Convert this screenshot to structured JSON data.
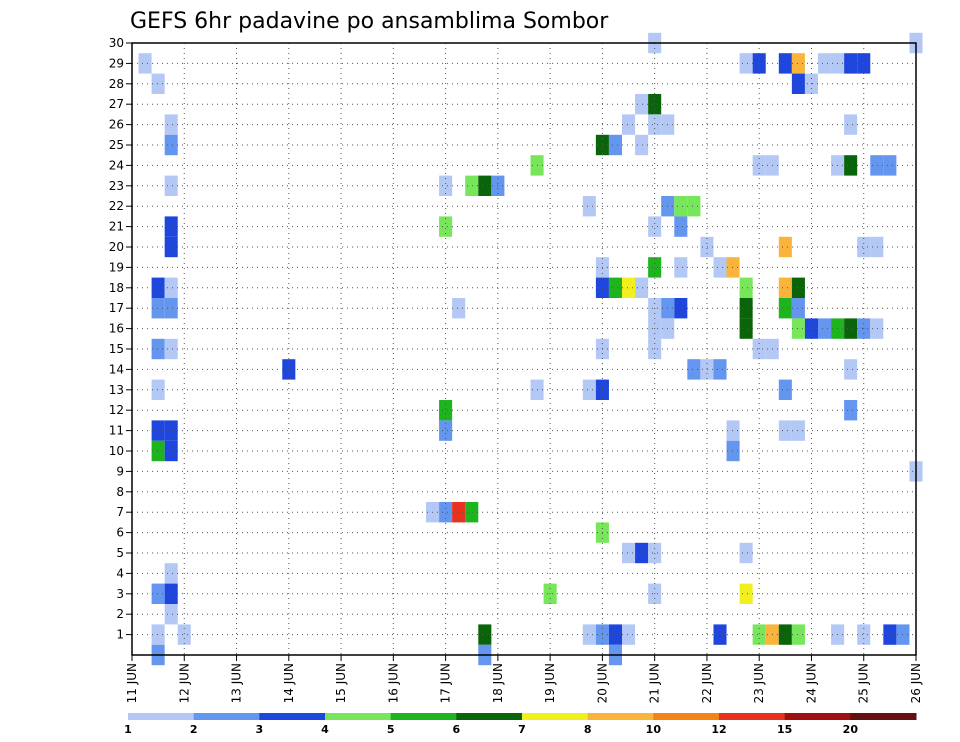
{
  "chart_data": {
    "type": "heatmap",
    "title": "GEFS 6hr padavine po ansamblima Sombor",
    "xlabel": "",
    "ylabel": "",
    "x_range_days": [
      11,
      26
    ],
    "x_ticks": [
      "11 JUN",
      "12 JUN",
      "13 JUN",
      "14 JUN",
      "15 JUN",
      "16 JUN",
      "17 JUN",
      "18 JUN",
      "19 JUN",
      "20 JUN",
      "21 JUN",
      "22 JUN",
      "23 JUN",
      "24 JUN",
      "25 JUN",
      "26 JUN"
    ],
    "y_ticks": [
      "1",
      "2",
      "3",
      "4",
      "5",
      "6",
      "7",
      "8",
      "9",
      "10",
      "11",
      "12",
      "13",
      "14",
      "15",
      "16",
      "17",
      "18",
      "19",
      "20",
      "21",
      "22",
      "23",
      "24",
      "25",
      "26",
      "27",
      "28",
      "29",
      "30"
    ],
    "ylim": [
      0,
      30
    ],
    "grid": true,
    "colorbar": {
      "labels": [
        "1",
        "2",
        "3",
        "4",
        "5",
        "6",
        "7",
        "8",
        "10",
        "12",
        "15",
        "20"
      ],
      "colors": [
        "#b4c8f5",
        "#6496f0",
        "#1e46dc",
        "#78e65a",
        "#1eb41e",
        "#0a640a",
        "#f0f01e",
        "#fab43c",
        "#f58214",
        "#e6321e",
        "#a00f0f",
        "#641010"
      ]
    },
    "cells_format": "[member, day_of_june, color_class_index]",
    "cells": [
      [
        30,
        21.0,
        0
      ],
      [
        30,
        26.0,
        0
      ],
      [
        29,
        11.25,
        0
      ],
      [
        29,
        22.75,
        0
      ],
      [
        29,
        23.0,
        2
      ],
      [
        29,
        23.5,
        2
      ],
      [
        29,
        23.75,
        7
      ],
      [
        29,
        24.25,
        0
      ],
      [
        29,
        24.5,
        0
      ],
      [
        29,
        24.75,
        2
      ],
      [
        29,
        25.0,
        2
      ],
      [
        28,
        11.5,
        0
      ],
      [
        28,
        23.75,
        2
      ],
      [
        28,
        24.0,
        0
      ],
      [
        27,
        20.75,
        0
      ],
      [
        27,
        21.0,
        5
      ],
      [
        26,
        11.75,
        0
      ],
      [
        26,
        20.5,
        0
      ],
      [
        26,
        21.0,
        0
      ],
      [
        26,
        21.25,
        0
      ],
      [
        26,
        24.75,
        0
      ],
      [
        25,
        11.75,
        1
      ],
      [
        25,
        20.0,
        5
      ],
      [
        25,
        20.25,
        1
      ],
      [
        25,
        20.75,
        0
      ],
      [
        24,
        18.75,
        3
      ],
      [
        24,
        23.0,
        0
      ],
      [
        24,
        23.25,
        0
      ],
      [
        24,
        24.5,
        0
      ],
      [
        24,
        24.75,
        5
      ],
      [
        24,
        25.25,
        1
      ],
      [
        24,
        25.5,
        1
      ],
      [
        23,
        11.75,
        0
      ],
      [
        23,
        17.0,
        0
      ],
      [
        23,
        17.5,
        3
      ],
      [
        23,
        17.75,
        5
      ],
      [
        23,
        18.0,
        1
      ],
      [
        22,
        19.75,
        0
      ],
      [
        22,
        21.25,
        1
      ],
      [
        22,
        21.5,
        3
      ],
      [
        22,
        21.75,
        3
      ],
      [
        21,
        11.75,
        2
      ],
      [
        21,
        17.0,
        3
      ],
      [
        21,
        21.0,
        0
      ],
      [
        21,
        21.5,
        1
      ],
      [
        20,
        11.75,
        2
      ],
      [
        20,
        22.0,
        0
      ],
      [
        20,
        23.5,
        7
      ],
      [
        20,
        25.0,
        0
      ],
      [
        20,
        25.25,
        0
      ],
      [
        19,
        20.0,
        0
      ],
      [
        19,
        21.0,
        4
      ],
      [
        19,
        21.5,
        0
      ],
      [
        19,
        22.25,
        0
      ],
      [
        19,
        22.5,
        7
      ],
      [
        18,
        11.5,
        2
      ],
      [
        18,
        11.75,
        0
      ],
      [
        18,
        20.0,
        2
      ],
      [
        18,
        20.25,
        4
      ],
      [
        18,
        20.5,
        6
      ],
      [
        18,
        20.75,
        0
      ],
      [
        18,
        22.75,
        3
      ],
      [
        18,
        23.5,
        7
      ],
      [
        18,
        23.75,
        5
      ],
      [
        17,
        11.5,
        1
      ],
      [
        17,
        11.75,
        1
      ],
      [
        17,
        17.25,
        0
      ],
      [
        17,
        21.0,
        0
      ],
      [
        17,
        21.25,
        1
      ],
      [
        17,
        21.5,
        2
      ],
      [
        17,
        22.75,
        5
      ],
      [
        17,
        23.5,
        4
      ],
      [
        17,
        23.75,
        1
      ],
      [
        16,
        21.0,
        0
      ],
      [
        16,
        21.25,
        0
      ],
      [
        16,
        22.75,
        5
      ],
      [
        16,
        23.75,
        3
      ],
      [
        16,
        24.0,
        2
      ],
      [
        16,
        24.25,
        1
      ],
      [
        16,
        24.5,
        4
      ],
      [
        16,
        24.75,
        5
      ],
      [
        16,
        25.0,
        1
      ],
      [
        16,
        25.25,
        0
      ],
      [
        15,
        11.5,
        1
      ],
      [
        15,
        11.75,
        0
      ],
      [
        15,
        20.0,
        0
      ],
      [
        15,
        21.0,
        0
      ],
      [
        15,
        23.0,
        0
      ],
      [
        15,
        23.25,
        0
      ],
      [
        14,
        14.0,
        2
      ],
      [
        14,
        21.75,
        1
      ],
      [
        14,
        22.0,
        0
      ],
      [
        14,
        22.25,
        1
      ],
      [
        14,
        24.75,
        0
      ],
      [
        13,
        11.5,
        0
      ],
      [
        13,
        18.75,
        0
      ],
      [
        13,
        19.75,
        0
      ],
      [
        13,
        20.0,
        2
      ],
      [
        13,
        23.5,
        1
      ],
      [
        12,
        17.0,
        4
      ],
      [
        12,
        24.75,
        1
      ],
      [
        11,
        11.5,
        2
      ],
      [
        11,
        11.75,
        2
      ],
      [
        11,
        17.0,
        1
      ],
      [
        11,
        22.5,
        0
      ],
      [
        11,
        23.5,
        0
      ],
      [
        11,
        23.75,
        0
      ],
      [
        10,
        11.5,
        4
      ],
      [
        10,
        11.75,
        2
      ],
      [
        10,
        22.5,
        1
      ],
      [
        9,
        26.0,
        0
      ],
      [
        7,
        16.75,
        0
      ],
      [
        7,
        17.0,
        1
      ],
      [
        7,
        17.25,
        9
      ],
      [
        7,
        17.5,
        4
      ],
      [
        6,
        20.0,
        3
      ],
      [
        5,
        20.5,
        0
      ],
      [
        5,
        20.75,
        2
      ],
      [
        5,
        21.0,
        0
      ],
      [
        5,
        22.75,
        0
      ],
      [
        4,
        11.75,
        0
      ],
      [
        3,
        11.5,
        1
      ],
      [
        3,
        11.75,
        2
      ],
      [
        3,
        19.0,
        3
      ],
      [
        3,
        21.0,
        0
      ],
      [
        3,
        22.75,
        6
      ],
      [
        2,
        11.75,
        0
      ],
      [
        1,
        11.5,
        0
      ],
      [
        1,
        12.0,
        0
      ],
      [
        1,
        17.75,
        5
      ],
      [
        1,
        19.75,
        0
      ],
      [
        1,
        20.0,
        1
      ],
      [
        1,
        20.25,
        2
      ],
      [
        1,
        20.5,
        0
      ],
      [
        1,
        22.25,
        2
      ],
      [
        1,
        23.0,
        3
      ],
      [
        1,
        23.25,
        7
      ],
      [
        1,
        23.5,
        5
      ],
      [
        1,
        23.75,
        3
      ],
      [
        1,
        24.5,
        0
      ],
      [
        1,
        25.0,
        0
      ],
      [
        1,
        25.5,
        2
      ],
      [
        1,
        25.75,
        1
      ],
      [
        0,
        11.5,
        1
      ],
      [
        0,
        17.75,
        1
      ],
      [
        0,
        20.25,
        1
      ]
    ]
  }
}
